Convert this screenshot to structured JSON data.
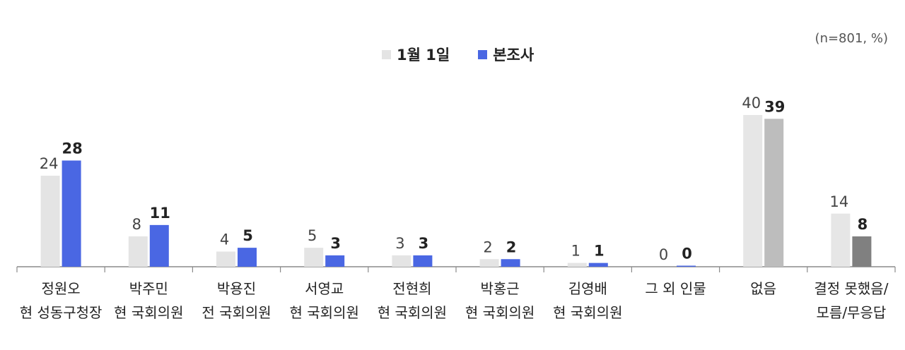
{
  "note": "(n=801, %)",
  "legend": [
    {
      "name": "1월 1일",
      "color": "#e4e4e4"
    },
    {
      "name": "본조사",
      "color": "#4a67e3"
    }
  ],
  "chart_data": {
    "type": "bar",
    "categories": [
      [
        "정원오",
        "현 성동구청장"
      ],
      [
        "박주민",
        "현 국회의원"
      ],
      [
        "박용진",
        "전 국회의원"
      ],
      [
        "서영교",
        "현 국회의원"
      ],
      [
        "전현희",
        "현 국회의원"
      ],
      [
        "박홍근",
        "현 국회의원"
      ],
      [
        "김영배",
        "현 국회의원"
      ],
      [
        "그 외 인물"
      ],
      [
        "없음"
      ],
      [
        "결정 못했음/",
        "모름/무응답"
      ]
    ],
    "series": [
      {
        "name": "1월 1일",
        "values": [
          24,
          8,
          4,
          5,
          3,
          2,
          1,
          0,
          40,
          14
        ]
      },
      {
        "name": "본조사",
        "values": [
          28,
          11,
          5,
          3,
          3,
          2,
          1,
          0,
          39,
          8
        ]
      }
    ],
    "special_colors": {
      "prev_default": "#e4e4e4",
      "curr_default": "#4a67e3",
      "prev_grey": "#e6e6e6",
      "curr_none": "#bdbdbd",
      "curr_undecided": "#808080"
    },
    "special_indices": {
      "none": 8,
      "undecided": 9
    },
    "ylim": [
      0,
      40
    ]
  }
}
